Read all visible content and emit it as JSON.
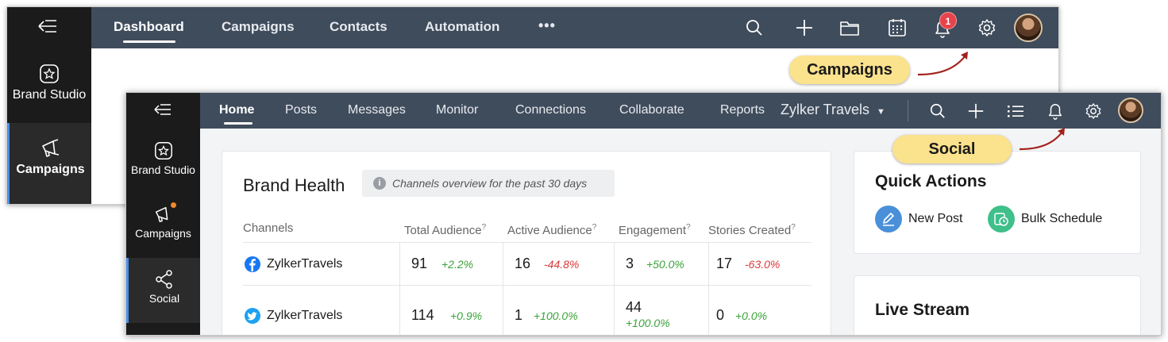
{
  "campaigns_window": {
    "sidebar": {
      "items": [
        {
          "label": "Brand Studio",
          "icon": "brand-studio-icon"
        },
        {
          "label": "Campaigns",
          "icon": "megaphone-icon"
        }
      ]
    },
    "topbar": {
      "tabs": [
        "Dashboard",
        "Campaigns",
        "Contacts",
        "Automation"
      ],
      "more": "•••",
      "notification_count": "1"
    }
  },
  "callouts": {
    "campaigns": "Campaigns",
    "social": "Social"
  },
  "social_window": {
    "sidebar": {
      "items": [
        {
          "label": "Brand Studio",
          "icon": "brand-studio-icon"
        },
        {
          "label": "Campaigns",
          "icon": "megaphone-icon"
        },
        {
          "label": "Social",
          "icon": "share-icon"
        }
      ]
    },
    "topbar": {
      "tabs": [
        "Home",
        "Posts",
        "Messages",
        "Monitor",
        "Connections",
        "Collaborate",
        "Reports"
      ],
      "brand_selector": "Zylker Travels"
    },
    "brand_health": {
      "title": "Brand Health",
      "info_icon": "i",
      "subtitle": "Channels overview for the past 30 days",
      "columns": [
        "Channels",
        "Total Audience",
        "Active Audience",
        "Engagement",
        "Stories Created"
      ],
      "help_mark": "?",
      "rows": [
        {
          "channel": "ZylkerTravels",
          "network": "facebook",
          "total": "91",
          "total_change": "+2.2%",
          "active": "16",
          "active_change": "-44.8%",
          "engagement": "3",
          "engagement_change": "+50.0%",
          "stories": "17",
          "stories_change": "-63.0%"
        },
        {
          "channel": "ZylkerTravels",
          "network": "twitter",
          "total": "114",
          "total_change": "+0.9%",
          "active": "1",
          "active_change": "+100.0%",
          "engagement": "44",
          "engagement_change": "+100.0%",
          "stories": "0",
          "stories_change": "+0.0%"
        }
      ]
    },
    "quick_actions": {
      "title": "Quick Actions",
      "buttons": [
        "New Post",
        "Bulk Schedule"
      ]
    },
    "live_stream": {
      "title": "Live Stream"
    }
  },
  "colors": {
    "topbar": "#3f4c5c",
    "sidebar": "#1b1b1b",
    "callout": "#fbe28c",
    "positive": "#3aa339",
    "negative": "#d93a3a",
    "facebook": "#1877f2",
    "twitter": "#1da1f2",
    "new_post": "#4a90d9",
    "bulk_schedule": "#3fbf8a"
  }
}
